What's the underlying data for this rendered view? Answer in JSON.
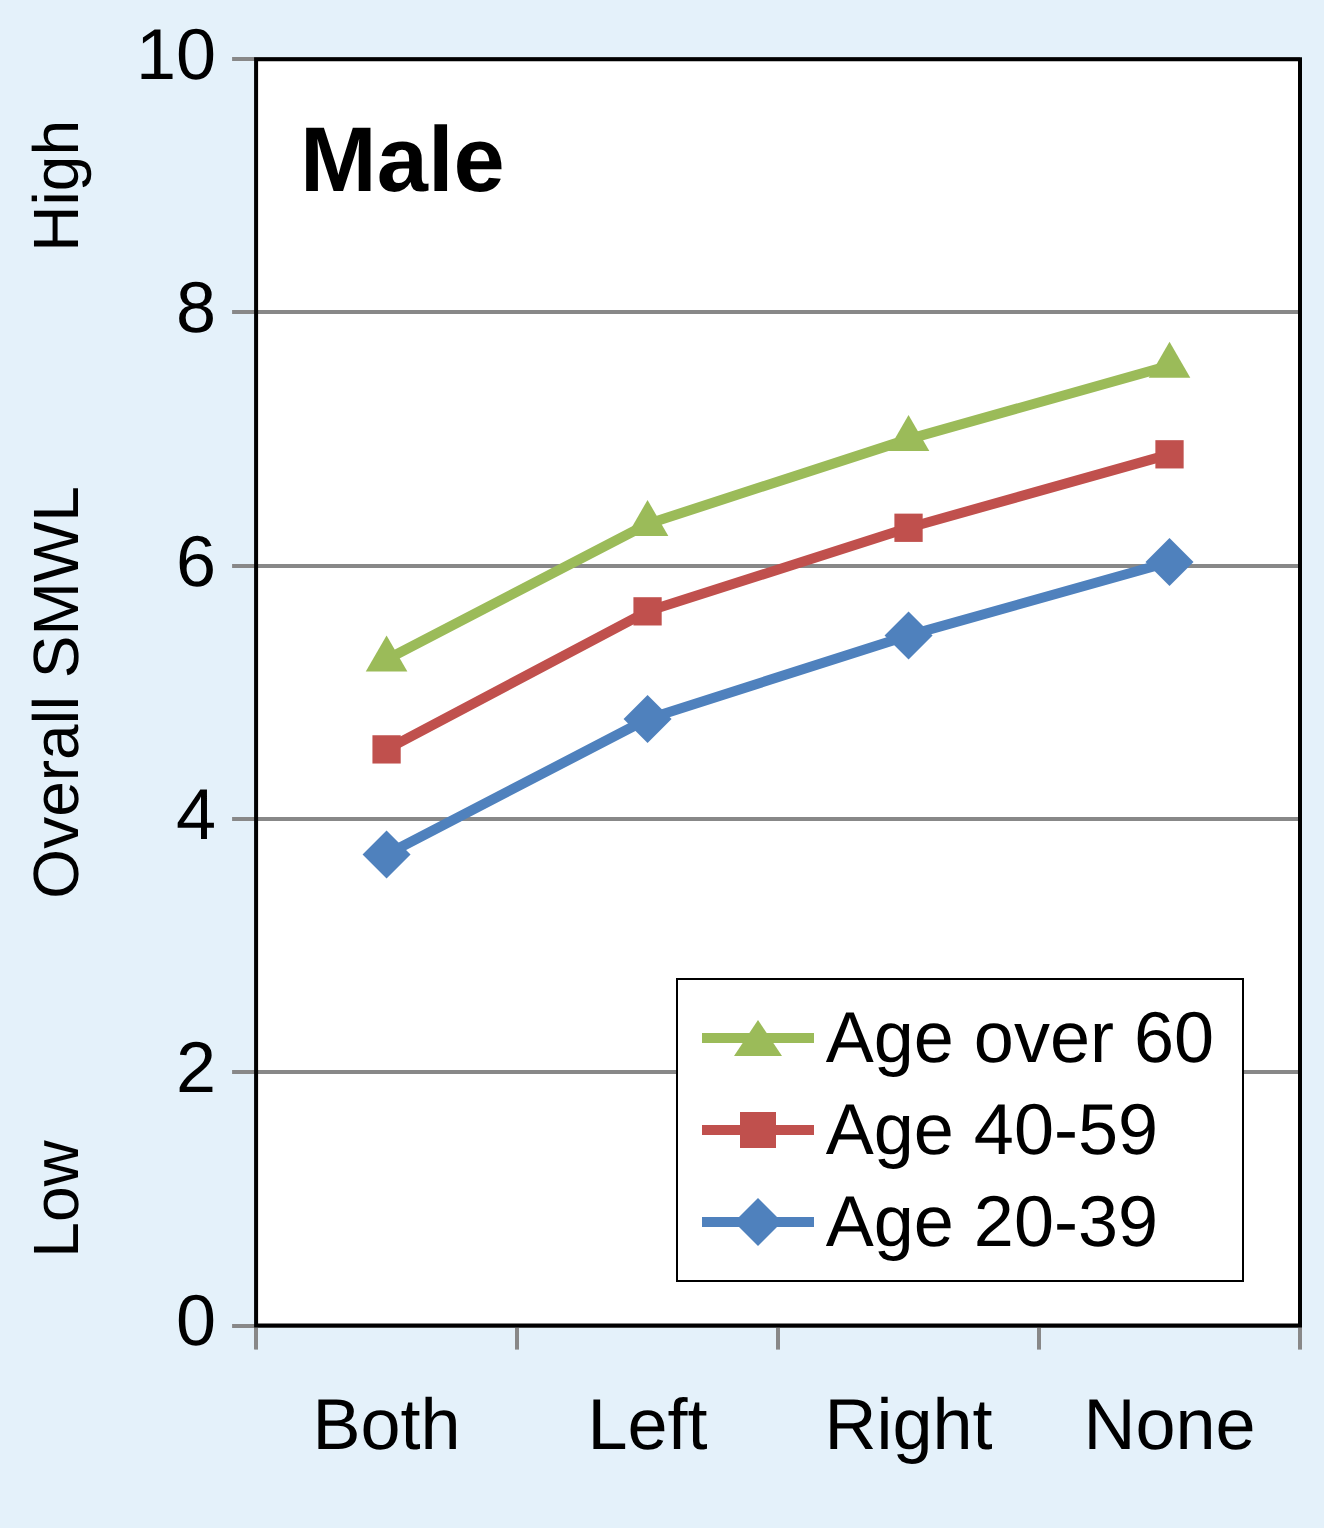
{
  "chart_data": {
    "type": "line",
    "title": "Male",
    "ylabel": "Overall SMWL",
    "annotations": [
      "High",
      "Low"
    ],
    "categories": [
      "Both",
      "Left",
      "Right",
      "None"
    ],
    "series": [
      {
        "name": "Age over 60",
        "color": "#9bbb59",
        "marker": "triangle",
        "values": [
          5.26,
          6.33,
          7.0,
          7.58
        ]
      },
      {
        "name": "Age 40-59",
        "color": "#c0504d",
        "marker": "square",
        "values": [
          4.55,
          5.64,
          6.3,
          6.88
        ]
      },
      {
        "name": "Age 20-39",
        "color": "#4f81bd",
        "marker": "diamond",
        "values": [
          3.72,
          4.79,
          5.45,
          6.03
        ]
      }
    ],
    "ylim": [
      0,
      10
    ],
    "yticks": [
      0,
      2,
      4,
      6,
      8,
      10
    ],
    "grid": "y",
    "legend": "bottom right"
  }
}
